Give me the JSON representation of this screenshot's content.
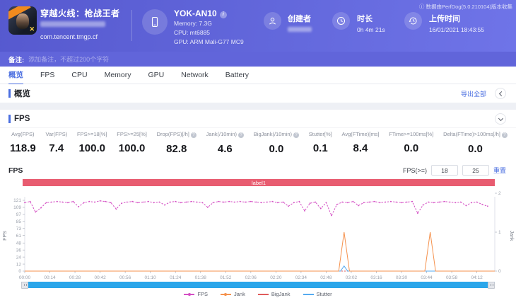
{
  "header": {
    "game_title": "穿越火线：枪战王者",
    "package_name": "com.tencent.tmgp.cf",
    "device": {
      "name": "YOK-AN10",
      "memory": "Memory: 7.3G",
      "cpu": "CPU: mt6885",
      "gpu": "GPU: ARM Mali-G77 MC9"
    },
    "creator_label": "创建者",
    "duration_label": "时长",
    "duration_value": "0h 4m 21s",
    "upload_label": "上传时间",
    "upload_value": "16/01/2021 18:43:55",
    "perfdog_note": "数据由PerfDog(5.0.210104)版本收集"
  },
  "note_bar": {
    "label": "备注:",
    "placeholder": "添加备注，不超过200个字符"
  },
  "tabs": [
    {
      "id": "overview",
      "label": "概览",
      "active": true
    },
    {
      "id": "fps",
      "label": "FPS",
      "active": false
    },
    {
      "id": "cpu",
      "label": "CPU",
      "active": false
    },
    {
      "id": "memory",
      "label": "Memory",
      "active": false
    },
    {
      "id": "gpu",
      "label": "GPU",
      "active": false
    },
    {
      "id": "network",
      "label": "Network",
      "active": false
    },
    {
      "id": "battery",
      "label": "Battery",
      "active": false
    }
  ],
  "overview_section": {
    "title": "概览",
    "export_all_label": "导出全部"
  },
  "fps_panel": {
    "title": "FPS",
    "chart_title": "FPS",
    "threshold_label": "FPS(>=)",
    "threshold_low": "18",
    "threshold_high": "25",
    "reset_label": "重置",
    "stats": [
      {
        "label": "Avg(FPS)",
        "value": "118.9",
        "info": false
      },
      {
        "label": "Var(FPS)",
        "value": "7.4",
        "info": false
      },
      {
        "label": "FPS>=18[%]",
        "value": "100.0",
        "info": false
      },
      {
        "label": "FPS>=25[%]",
        "value": "100.0",
        "info": false
      },
      {
        "label": "Drop(FPS)[/h]",
        "value": "82.8",
        "info": true
      },
      {
        "label": "Jank(/10min)",
        "value": "4.6",
        "info": true
      },
      {
        "label": "BigJank(/10min)",
        "value": "0.0",
        "info": true
      },
      {
        "label": "Stutter[%]",
        "value": "0.1",
        "info": false
      },
      {
        "label": "Avg(FTime)[ms]",
        "value": "8.4",
        "info": false
      },
      {
        "label": "FTime>=100ms[%]",
        "value": "0.0",
        "info": false
      },
      {
        "label": "Delta(FTime)>100ms[/h]",
        "value": "0.0",
        "info": true
      }
    ]
  },
  "chart_data": {
    "type": "line",
    "banner_label": "label1",
    "banner_color": "#e85c70",
    "ylabel_left": "FPS",
    "ylabel_right": "Jank",
    "y_left_ticks": [
      0,
      12,
      24,
      36,
      48,
      61,
      73,
      85,
      97,
      109,
      121
    ],
    "y_left_max": 121,
    "y_right_ticks": [
      0,
      1,
      2
    ],
    "y_right_max": 2,
    "x_tick_labels": [
      "00:00",
      "00:14",
      "00:28",
      "00:42",
      "00:56",
      "01:10",
      "01:24",
      "01:38",
      "01:52",
      "02:06",
      "02:20",
      "02:34",
      "02:48",
      "03:02",
      "03:16",
      "03:30",
      "03:44",
      "03:58",
      "04:12"
    ],
    "x_tick_seconds": [
      0,
      14,
      28,
      42,
      56,
      70,
      84,
      98,
      112,
      126,
      140,
      154,
      168,
      182,
      196,
      210,
      224,
      238,
      252
    ],
    "x_max_seconds": 262,
    "legend": [
      "FPS",
      "Jank",
      "BigJank",
      "Stutter"
    ],
    "series": [
      {
        "name": "BigJank",
        "color": "#e05b5b",
        "axis": "right",
        "style": "dashed",
        "t": [
          0,
          262
        ],
        "values": [
          0,
          0
        ]
      },
      {
        "name": "Stutter",
        "color": "#55aaf0",
        "axis": "right",
        "style": "solid",
        "t": [
          0,
          176,
          178,
          180,
          262
        ],
        "values": [
          0,
          0,
          0.13,
          0,
          0
        ]
      },
      {
        "name": "Jank",
        "color": "#f5924e",
        "axis": "right",
        "style": "solid",
        "t": [
          0,
          175,
          178,
          181,
          223,
          226,
          229,
          262
        ],
        "values": [
          0,
          0,
          1,
          0,
          0,
          1,
          0,
          0
        ]
      },
      {
        "name": "FPS",
        "color": "#d44fc4",
        "axis": "left",
        "style": "dotted-marker",
        "t": [
          0,
          3,
          6,
          9,
          12,
          15,
          18,
          21,
          24,
          27,
          30,
          33,
          36,
          39,
          42,
          45,
          48,
          51,
          54,
          57,
          60,
          63,
          66,
          69,
          72,
          75,
          78,
          81,
          84,
          87,
          90,
          93,
          96,
          99,
          102,
          105,
          108,
          111,
          114,
          117,
          120,
          123,
          126,
          129,
          132,
          135,
          138,
          141,
          144,
          147,
          150,
          153,
          156,
          159,
          162,
          165,
          168,
          171,
          174,
          177,
          180,
          183,
          186,
          189,
          192,
          195,
          198,
          201,
          204,
          207,
          210,
          213,
          216,
          219,
          222,
          225,
          228,
          231,
          234,
          237,
          240,
          243,
          246,
          249,
          252,
          255,
          258
        ],
        "values": [
          117,
          119,
          101,
          108,
          117,
          118,
          119,
          118,
          117,
          119,
          110,
          117,
          119,
          118,
          120,
          119,
          117,
          106,
          116,
          118,
          119,
          117,
          118,
          119,
          117,
          118,
          113,
          118,
          119,
          117,
          118,
          119,
          118,
          117,
          109,
          117,
          119,
          118,
          119,
          118,
          119,
          118,
          119,
          118,
          117,
          118,
          119,
          117,
          118,
          111,
          117,
          119,
          103,
          116,
          118,
          107,
          117,
          95,
          114,
          118,
          117,
          119,
          112,
          117,
          118,
          119,
          117,
          118,
          119,
          118,
          117,
          118,
          119,
          99,
          113,
          118,
          117,
          118,
          119,
          118,
          117,
          118,
          112,
          117,
          118,
          114,
          111
        ]
      }
    ]
  }
}
